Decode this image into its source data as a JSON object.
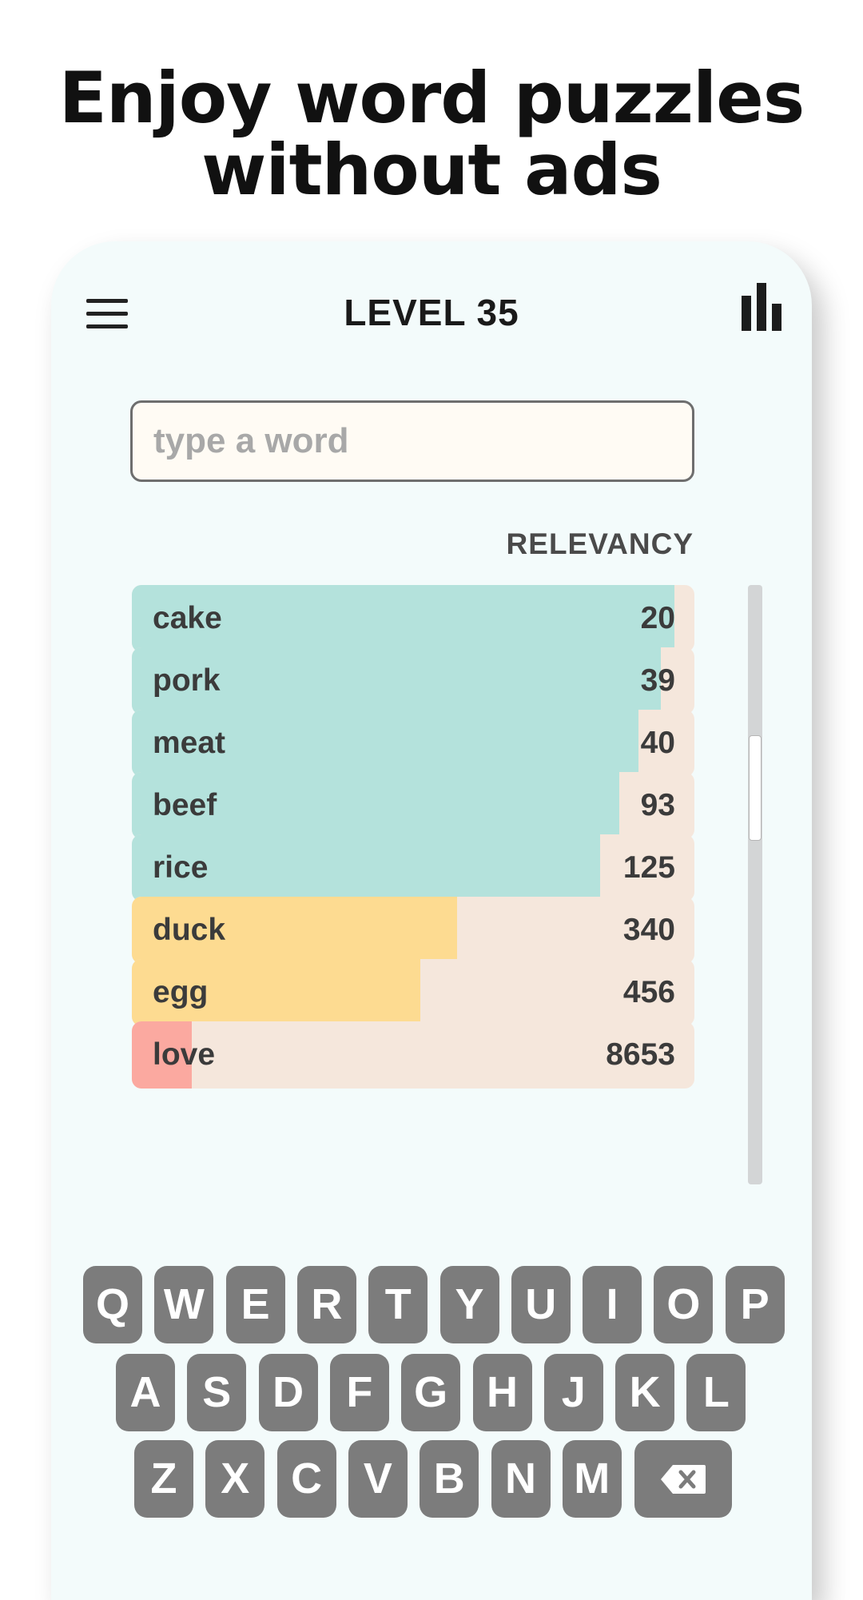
{
  "promo": {
    "headline_line1": "Enjoy word puzzles",
    "headline_line2": "without ads"
  },
  "header": {
    "menu_icon": "hamburger-menu-icon",
    "title": "LEVEL 35",
    "stats_icon": "bar-chart-icon"
  },
  "search": {
    "placeholder": "type a word",
    "value": ""
  },
  "list": {
    "column_label": "RELEVANCY",
    "guesses": [
      {
        "word": "cake",
        "score": "20",
        "fill": 0.964,
        "color": "#b4e2dc"
      },
      {
        "word": "pork",
        "score": "39",
        "fill": 0.941,
        "color": "#b4e2dc"
      },
      {
        "word": "meat",
        "score": "40",
        "fill": 0.901,
        "color": "#b4e2dc"
      },
      {
        "word": "beef",
        "score": "93",
        "fill": 0.866,
        "color": "#b4e2dc"
      },
      {
        "word": "rice",
        "score": "125",
        "fill": 0.832,
        "color": "#b4e2dc"
      },
      {
        "word": "duck",
        "score": "340",
        "fill": 0.578,
        "color": "#fddb91"
      },
      {
        "word": "egg",
        "score": "456",
        "fill": 0.513,
        "color": "#fddb91"
      },
      {
        "word": "love",
        "score": "8653",
        "fill": 0.106,
        "color": "#fba9a0"
      }
    ]
  },
  "keyboard": {
    "row1": [
      "Q",
      "W",
      "E",
      "R",
      "T",
      "Y",
      "U",
      "I",
      "O",
      "P"
    ],
    "row2": [
      "A",
      "S",
      "D",
      "F",
      "G",
      "H",
      "J",
      "K",
      "L"
    ],
    "row3": [
      "Z",
      "X",
      "C",
      "V",
      "B",
      "N",
      "M"
    ],
    "backspace_icon": "backspace-icon"
  },
  "colors": {
    "close_match": "#b4e2dc",
    "medium_match": "#fddb91",
    "far_match": "#fba9a0",
    "row_background": "#f5e7dc",
    "key_background": "#7c7c7c"
  }
}
